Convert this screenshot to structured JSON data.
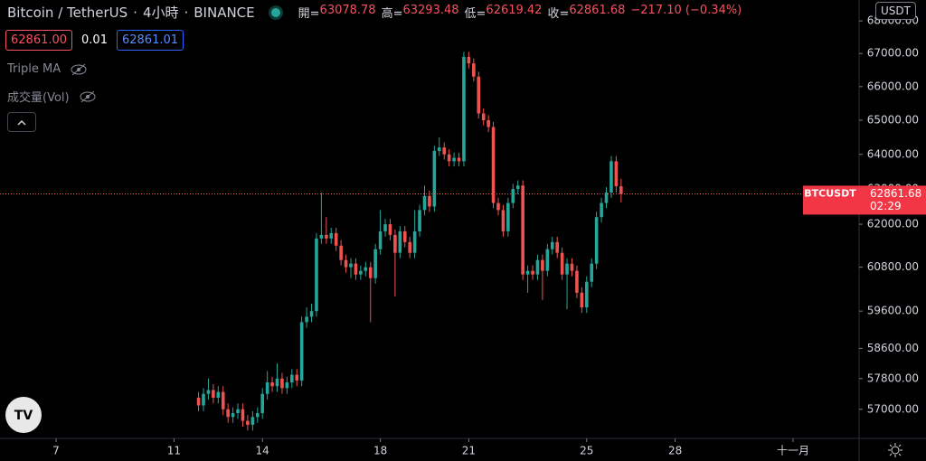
{
  "header": {
    "symbol": "Bitcoin / TetherUS",
    "separator": "·",
    "interval": "4小時",
    "exchange": "BINANCE",
    "open_label": "開=",
    "high_label": "高=",
    "low_label": "低=",
    "close_label": "收=",
    "change": "−217.10 (−0.34%)"
  },
  "trade": {
    "sell": "62861.00",
    "spread": "0.01",
    "buy": "62861.01"
  },
  "indicators": [
    "Triple MA",
    "成交量(Vol)"
  ],
  "currency": "USDT",
  "price_tag": {
    "symbol": "BTCUSDT",
    "countdown": "02:29"
  },
  "chart_data": {
    "type": "candlestick",
    "log": true,
    "grid": false,
    "xlim": [
      5.098,
      34.24
    ],
    "xticks": [
      7,
      11,
      14,
      18,
      21,
      25,
      28,
      {
        "value": 32,
        "label": "十一月"
      }
    ],
    "ylim": [
      56250,
      68650
    ],
    "yticks": [
      {
        "value": 57000,
        "label": "57000.00"
      },
      {
        "value": 57800,
        "label": "57800.00"
      },
      {
        "value": 58600,
        "label": "58600.00"
      },
      {
        "value": 59600,
        "label": "59600.00"
      },
      {
        "value": 60800,
        "label": "60800.00"
      },
      {
        "value": 62000,
        "label": "62000.00"
      },
      {
        "value": 63000,
        "label": "63000.00"
      },
      {
        "value": 64000,
        "label": "64000.00"
      },
      {
        "value": 65000,
        "label": "65000.00"
      },
      {
        "value": 66000,
        "label": "66000.00"
      },
      {
        "value": 67000,
        "label": "67000.00"
      },
      {
        "value": 68000,
        "label": "68000.00"
      }
    ],
    "series": [
      {
        "up_color": "#26a69a",
        "down_color": "#ef5350",
        "x": [
          11.833,
          12,
          12.167,
          12.333,
          12.5,
          12.667,
          12.833,
          13,
          13.167,
          13.333,
          13.5,
          13.667,
          13.833,
          14,
          14.167,
          14.333,
          14.5,
          14.667,
          14.833,
          15,
          15.167,
          15.333,
          15.5,
          15.667,
          15.833,
          16,
          16.167,
          16.333,
          16.5,
          16.667,
          16.833,
          17,
          17.167,
          17.333,
          17.5,
          17.667,
          17.833,
          18,
          18.167,
          18.333,
          18.5,
          18.667,
          18.833,
          19,
          19.167,
          19.333,
          19.5,
          19.667,
          19.833,
          20,
          20.167,
          20.333,
          20.5,
          20.667,
          20.833,
          21,
          21.167,
          21.333,
          21.5,
          21.667,
          21.833,
          22,
          22.167,
          22.333,
          22.5,
          22.667,
          22.833,
          23,
          23.167,
          23.333,
          23.5,
          23.667,
          23.833,
          24,
          24.167,
          24.333,
          24.5,
          24.667,
          24.833,
          25,
          25.167,
          25.333,
          25.5,
          25.667,
          25.833,
          26,
          26.167
        ],
        "open": [
          57300,
          57100,
          57400,
          57500,
          57300,
          57450,
          57000,
          56800,
          56900,
          57000,
          56700,
          56600,
          56800,
          56900,
          57400,
          57700,
          57600,
          57800,
          57550,
          57700,
          57900,
          57750,
          59300,
          59450,
          59600,
          61600,
          61700,
          61600,
          61750,
          61400,
          61000,
          60800,
          60900,
          60600,
          60700,
          60800,
          60500,
          61300,
          61800,
          62000,
          61700,
          61200,
          61800,
          61500,
          61200,
          61800,
          62400,
          62800,
          62500,
          64100,
          64200,
          64000,
          63800,
          63900,
          63800,
          66900,
          66700,
          66300,
          65200,
          65000,
          64800,
          62600,
          62400,
          61800,
          62600,
          63000,
          63100,
          60600,
          60700,
          60600,
          61000,
          60700,
          61300,
          61500,
          61200,
          60600,
          60900,
          60700,
          60100,
          59700,
          60400,
          60900,
          62200,
          62600,
          62900,
          63800,
          63078.78
        ],
        "high": [
          57450,
          57550,
          57800,
          57650,
          57600,
          57600,
          57150,
          57050,
          57150,
          57150,
          56850,
          56950,
          57050,
          57550,
          58000,
          57850,
          58200,
          57950,
          57850,
          58050,
          58050,
          59450,
          59700,
          59800,
          61750,
          62900,
          62200,
          61900,
          61900,
          61550,
          61150,
          61050,
          61050,
          60850,
          60950,
          60950,
          61450,
          62400,
          62150,
          62150,
          61850,
          61950,
          61950,
          61650,
          62400,
          62550,
          63100,
          62950,
          64250,
          64500,
          64350,
          64150,
          64050,
          64050,
          67050,
          67050,
          66850,
          66450,
          65350,
          65150,
          64950,
          62750,
          62550,
          62750,
          63150,
          63250,
          63250,
          60850,
          60850,
          61150,
          61150,
          61450,
          61650,
          61650,
          61350,
          61050,
          61050,
          60850,
          60250,
          60550,
          61050,
          62350,
          62750,
          63050,
          63950,
          63950,
          63293.48
        ],
        "low": [
          56950,
          56950,
          57250,
          57150,
          57150,
          56850,
          56650,
          56650,
          56750,
          56550,
          56450,
          56450,
          56650,
          56750,
          57250,
          57450,
          57450,
          57400,
          57400,
          57550,
          57600,
          57600,
          59150,
          59300,
          59450,
          61450,
          61450,
          61450,
          61250,
          60850,
          60650,
          60500,
          60450,
          60450,
          60550,
          59300,
          60350,
          61150,
          61650,
          61550,
          60000,
          61050,
          61350,
          61050,
          61050,
          61650,
          62250,
          62350,
          62350,
          63950,
          63850,
          63650,
          63650,
          63650,
          63650,
          66550,
          66150,
          65050,
          64850,
          64650,
          62450,
          62250,
          61650,
          61650,
          62450,
          62850,
          60450,
          60100,
          60450,
          60450,
          59900,
          60550,
          61150,
          61050,
          60450,
          59650,
          60550,
          59950,
          59550,
          59550,
          60250,
          60750,
          62050,
          62450,
          62750,
          62900,
          62619.42
        ],
        "close": [
          57100,
          57400,
          57500,
          57300,
          57450,
          57000,
          56800,
          56900,
          57000,
          56700,
          56600,
          56800,
          56900,
          57400,
          57700,
          57600,
          57800,
          57550,
          57700,
          57900,
          57750,
          59300,
          59450,
          59600,
          61600,
          61700,
          61600,
          61750,
          61400,
          61000,
          60800,
          60900,
          60600,
          60700,
          60800,
          60500,
          61300,
          61800,
          62000,
          61700,
          61200,
          61800,
          61500,
          61200,
          61800,
          62400,
          62800,
          62500,
          64100,
          64200,
          64000,
          63800,
          63900,
          63800,
          66900,
          66700,
          66300,
          65200,
          65000,
          64800,
          62600,
          62400,
          61800,
          62600,
          63000,
          63100,
          60600,
          60700,
          60600,
          61000,
          60700,
          61300,
          61500,
          61200,
          60600,
          60900,
          60700,
          60100,
          59700,
          60400,
          60900,
          62200,
          62600,
          62900,
          63800,
          63078.78,
          62861.68
        ]
      }
    ]
  }
}
